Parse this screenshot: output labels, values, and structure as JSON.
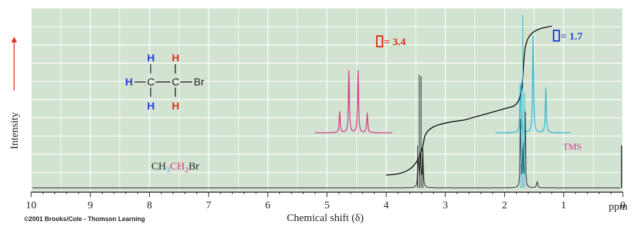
{
  "chart_data": {
    "type": "line",
    "title": "",
    "xlabel": "Chemical shift (δ)",
    "ylabel": "Intensity",
    "x_unit": "ppm",
    "xlim": [
      10,
      0
    ],
    "x_ticks": [
      10,
      9,
      8,
      7,
      6,
      5,
      4,
      3,
      2,
      1,
      0
    ],
    "grid": true,
    "background_color": "#d2e3d1",
    "grid_color": "#ffffff",
    "spectrum_color": "#000000",
    "integral_color": "#000000",
    "series": [
      {
        "peak_group": "CH2",
        "label_text": "= 3.4",
        "label_color": "#e0301e",
        "shift_ppm": 3.4,
        "multiplicity": "quartet",
        "relative_heights": [
          1,
          3,
          3,
          1
        ],
        "expansion_color": "#d63a8a"
      },
      {
        "peak_group": "CH3",
        "label_text": "= 1.7",
        "label_color": "#2a3fd9",
        "shift_ppm": 1.7,
        "multiplicity": "triplet",
        "relative_heights": [
          1,
          2,
          1
        ],
        "expansion_color": "#33b5dd"
      },
      {
        "peak_group": "TMS",
        "label_text": "TMS",
        "label_color": "#d63a8a",
        "shift_ppm": 0.0,
        "multiplicity": "singlet"
      }
    ],
    "integral": {
      "start_ppm": 4.0,
      "end_ppm": 1.2,
      "ratio": [
        2,
        3
      ]
    }
  },
  "structure": {
    "atoms": [
      "H",
      "H",
      "H",
      "C",
      "C",
      "Br",
      "H",
      "H"
    ],
    "ch3_h_color": "#2a3fd9",
    "ch2_h_color": "#e0301e"
  },
  "formula": {
    "p1": "CH",
    "p2": "3",
    "p3": "CH",
    "p4": "2",
    "p5": "Br"
  },
  "copyright": "©2001 Brooks/Cole - Thomson Learning"
}
